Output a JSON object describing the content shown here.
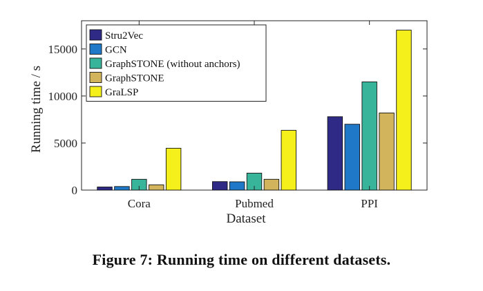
{
  "chart_data": {
    "type": "bar",
    "title": "",
    "xlabel": "Dataset",
    "ylabel": "Running time / s",
    "categories": [
      "Cora",
      "Pubmed",
      "PPI"
    ],
    "ylim": [
      0,
      18000
    ],
    "yticks": [
      0,
      5000,
      10000,
      15000
    ],
    "ytick_labels": [
      "0",
      "5000",
      "10000",
      "15000"
    ],
    "legend_position": "top-left",
    "series": [
      {
        "name": "Stru2Vec",
        "color": "#2e2a86",
        "values": [
          330,
          900,
          7800
        ]
      },
      {
        "name": "GCN",
        "color": "#1f78c8",
        "values": [
          380,
          880,
          7000
        ]
      },
      {
        "name": "GraphSTONE (without anchors)",
        "color": "#38b49a",
        "values": [
          1150,
          1800,
          11500
        ]
      },
      {
        "name": "GraphSTONE",
        "color": "#d2b45c",
        "values": [
          560,
          1150,
          8200
        ]
      },
      {
        "name": "GraLSP",
        "color": "#f5f01c",
        "values": [
          4450,
          6350,
          17000
        ]
      }
    ]
  },
  "caption": "Figure 7: Running time on different datasets."
}
